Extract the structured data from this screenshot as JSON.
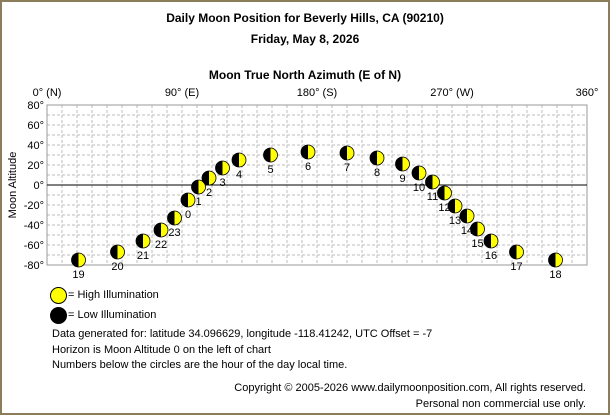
{
  "title": "Daily Moon Position for Beverly Hills, CA (90210)",
  "date": "Friday, May 8, 2026",
  "chart_data": {
    "type": "scatter",
    "title": "Moon True North Azimuth (E of N)",
    "xlabel": "Moon True North Azimuth (E of N)",
    "ylabel": "Moon Altitude",
    "xlim": [
      0,
      360
    ],
    "ylim": [
      -80,
      80
    ],
    "x_ticks": [
      {
        "value": 0,
        "label": "0° (N)"
      },
      {
        "value": 90,
        "label": "90° (E)"
      },
      {
        "value": 180,
        "label": "180° (S)"
      },
      {
        "value": 270,
        "label": "270° (W)"
      },
      {
        "value": 360,
        "label": "360°"
      }
    ],
    "y_ticks": [
      {
        "value": 80,
        "label": "80°"
      },
      {
        "value": 60,
        "label": "60°"
      },
      {
        "value": 40,
        "label": "40°"
      },
      {
        "value": 20,
        "label": "20°"
      },
      {
        "value": 0,
        "label": "0°"
      },
      {
        "value": -20,
        "label": "-20°"
      },
      {
        "value": -40,
        "label": "-40°"
      },
      {
        "value": -60,
        "label": "-60°"
      },
      {
        "value": -80,
        "label": "-80°"
      }
    ],
    "grid": true,
    "points": [
      {
        "hour": "19",
        "azimuth": 21,
        "altitude": -75
      },
      {
        "hour": "20",
        "azimuth": 47,
        "altitude": -67
      },
      {
        "hour": "21",
        "azimuth": 64,
        "altitude": -56
      },
      {
        "hour": "22",
        "azimuth": 76,
        "altitude": -45
      },
      {
        "hour": "23",
        "azimuth": 85,
        "altitude": -33
      },
      {
        "hour": "0",
        "azimuth": 94,
        "altitude": -15
      },
      {
        "hour": "1",
        "azimuth": 101,
        "altitude": -2
      },
      {
        "hour": "2",
        "azimuth": 108,
        "altitude": 7
      },
      {
        "hour": "3",
        "azimuth": 117,
        "altitude": 17
      },
      {
        "hour": "4",
        "azimuth": 128,
        "altitude": 25
      },
      {
        "hour": "5",
        "azimuth": 149,
        "altitude": 30
      },
      {
        "hour": "6",
        "azimuth": 174,
        "altitude": 33
      },
      {
        "hour": "7",
        "azimuth": 200,
        "altitude": 32
      },
      {
        "hour": "8",
        "azimuth": 220,
        "altitude": 27
      },
      {
        "hour": "9",
        "azimuth": 237,
        "altitude": 21
      },
      {
        "hour": "10",
        "azimuth": 248,
        "altitude": 12
      },
      {
        "hour": "11",
        "azimuth": 257,
        "altitude": 3
      },
      {
        "hour": "12",
        "azimuth": 265,
        "altitude": -8
      },
      {
        "hour": "13",
        "azimuth": 272,
        "altitude": -21
      },
      {
        "hour": "14",
        "azimuth": 280,
        "altitude": -31
      },
      {
        "hour": "15",
        "azimuth": 287,
        "altitude": -44
      },
      {
        "hour": "16",
        "azimuth": 296,
        "altitude": -56
      },
      {
        "hour": "17",
        "azimuth": 313,
        "altitude": -67
      },
      {
        "hour": "18",
        "azimuth": 339,
        "altitude": -75
      }
    ]
  },
  "legend": {
    "high": "= High Illumination",
    "low": "= Low Illumination"
  },
  "notes": [
    "Data generated for: latitude 34.096629, longitude -118.41242, UTC Offset = -7",
    "Horizon is Moon Altitude 0 on the left of chart",
    "Numbers below the circles are the hour of the day local time."
  ],
  "copyright": "Copyright © 2005-2026 www.dailymoonposition.com, All rights reserved.",
  "copyright_note": "Personal non commercial use only."
}
